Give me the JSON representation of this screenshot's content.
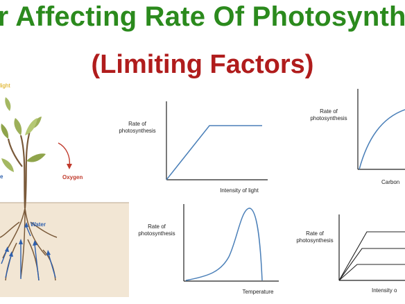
{
  "title": {
    "line1": "or Affecting Rate Of Photosynthe",
    "line2": "(Limiting Factors)"
  },
  "plant": {
    "light_label": "light",
    "oxygen_label": "Oxygen",
    "water_label": "Water",
    "left_label": "e"
  },
  "graphs": {
    "light": {
      "ylabel_1": "Rate of",
      "ylabel_2": "photosynthesis",
      "xlabel": "Intensity of light"
    },
    "co2": {
      "ylabel_1": "Rate of",
      "ylabel_2": "photosynthesis",
      "xlabel": "Carbon"
    },
    "temperature": {
      "ylabel_1": "Rate of",
      "ylabel_2": "photosynthesis",
      "xlabel": "Temperature"
    },
    "intensity": {
      "ylabel_1": "Rate of",
      "ylabel_2": "photosynthesis",
      "xlabel": "Intensity o"
    }
  },
  "colors": {
    "title_green": "#2b8a1d",
    "title_red": "#b01c1c",
    "curve_blue": "#4a7fb8",
    "soil": "#f2e6d4",
    "leaf": "#9db05a",
    "oxygen_red": "#c0392b",
    "light_yellow": "#d9a400",
    "water_blue": "#2d5fae"
  }
}
